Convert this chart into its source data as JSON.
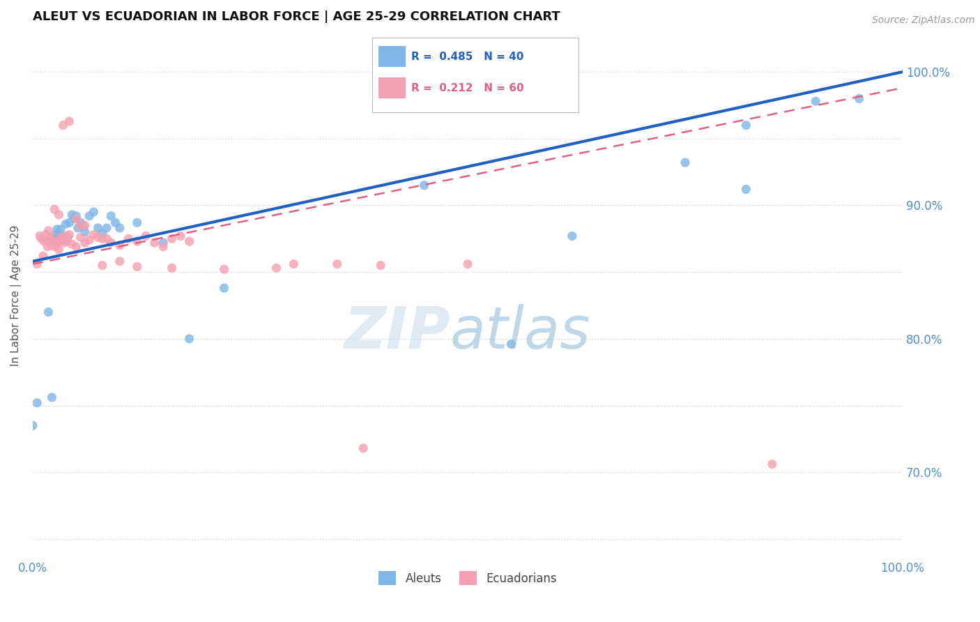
{
  "title": "ALEUT VS ECUADORIAN IN LABOR FORCE | AGE 25-29 CORRELATION CHART",
  "source": "Source: ZipAtlas.com",
  "ylabel": "In Labor Force | Age 25-29",
  "aleut_color": "#7EB6E8",
  "ecuadorian_color": "#F4A0B0",
  "blue_line_color": "#2060C0",
  "pink_line_color": "#E06080",
  "grid_color": "#D0DDE8",
  "background_color": "#FFFFFF",
  "xlim": [
    0.0,
    1.0
  ],
  "ylim": [
    0.635,
    1.03
  ],
  "aleut_R": 0.485,
  "aleut_N": 40,
  "ecuadorian_R": 0.212,
  "ecuadorian_N": 60,
  "aleut_line_x0": 0.0,
  "aleut_line_y0": 0.858,
  "aleut_line_x1": 1.0,
  "aleut_line_y1": 1.0,
  "ecua_line_x0": 0.0,
  "ecua_line_y0": 0.856,
  "ecua_line_x1": 1.0,
  "ecua_line_y1": 0.988,
  "aleut_scatter": [
    [
      0.0,
      0.735
    ],
    [
      0.005,
      0.752
    ],
    [
      0.018,
      0.82
    ],
    [
      0.022,
      0.756
    ],
    [
      0.025,
      0.875
    ],
    [
      0.027,
      0.878
    ],
    [
      0.028,
      0.882
    ],
    [
      0.03,
      0.873
    ],
    [
      0.032,
      0.882
    ],
    [
      0.033,
      0.877
    ],
    [
      0.038,
      0.886
    ],
    [
      0.04,
      0.876
    ],
    [
      0.042,
      0.887
    ],
    [
      0.045,
      0.893
    ],
    [
      0.048,
      0.89
    ],
    [
      0.05,
      0.892
    ],
    [
      0.052,
      0.883
    ],
    [
      0.055,
      0.887
    ],
    [
      0.058,
      0.884
    ],
    [
      0.06,
      0.88
    ],
    [
      0.065,
      0.892
    ],
    [
      0.07,
      0.895
    ],
    [
      0.075,
      0.883
    ],
    [
      0.08,
      0.879
    ],
    [
      0.085,
      0.883
    ],
    [
      0.09,
      0.892
    ],
    [
      0.095,
      0.887
    ],
    [
      0.1,
      0.883
    ],
    [
      0.12,
      0.887
    ],
    [
      0.15,
      0.872
    ],
    [
      0.18,
      0.8
    ],
    [
      0.22,
      0.838
    ],
    [
      0.45,
      0.915
    ],
    [
      0.55,
      0.796
    ],
    [
      0.62,
      0.877
    ],
    [
      0.75,
      0.932
    ],
    [
      0.82,
      0.96
    ],
    [
      0.9,
      0.978
    ],
    [
      0.95,
      0.98
    ],
    [
      0.82,
      0.912
    ]
  ],
  "ecuadorian_scatter": [
    [
      0.005,
      0.856
    ],
    [
      0.008,
      0.877
    ],
    [
      0.01,
      0.875
    ],
    [
      0.012,
      0.862
    ],
    [
      0.013,
      0.873
    ],
    [
      0.015,
      0.878
    ],
    [
      0.016,
      0.874
    ],
    [
      0.017,
      0.869
    ],
    [
      0.018,
      0.881
    ],
    [
      0.019,
      0.875
    ],
    [
      0.02,
      0.876
    ],
    [
      0.022,
      0.87
    ],
    [
      0.024,
      0.873
    ],
    [
      0.026,
      0.869
    ],
    [
      0.028,
      0.873
    ],
    [
      0.03,
      0.867
    ],
    [
      0.032,
      0.876
    ],
    [
      0.034,
      0.874
    ],
    [
      0.036,
      0.872
    ],
    [
      0.038,
      0.877
    ],
    [
      0.04,
      0.873
    ],
    [
      0.042,
      0.878
    ],
    [
      0.045,
      0.871
    ],
    [
      0.05,
      0.869
    ],
    [
      0.055,
      0.876
    ],
    [
      0.06,
      0.872
    ],
    [
      0.065,
      0.874
    ],
    [
      0.07,
      0.878
    ],
    [
      0.075,
      0.876
    ],
    [
      0.08,
      0.875
    ],
    [
      0.085,
      0.875
    ],
    [
      0.09,
      0.872
    ],
    [
      0.1,
      0.87
    ],
    [
      0.11,
      0.875
    ],
    [
      0.12,
      0.873
    ],
    [
      0.13,
      0.877
    ],
    [
      0.14,
      0.872
    ],
    [
      0.15,
      0.869
    ],
    [
      0.16,
      0.875
    ],
    [
      0.17,
      0.877
    ],
    [
      0.18,
      0.873
    ],
    [
      0.025,
      0.897
    ],
    [
      0.03,
      0.893
    ],
    [
      0.035,
      0.96
    ],
    [
      0.042,
      0.963
    ],
    [
      0.05,
      0.89
    ],
    [
      0.055,
      0.885
    ],
    [
      0.06,
      0.885
    ],
    [
      0.08,
      0.855
    ],
    [
      0.1,
      0.858
    ],
    [
      0.12,
      0.854
    ],
    [
      0.16,
      0.853
    ],
    [
      0.22,
      0.852
    ],
    [
      0.28,
      0.853
    ],
    [
      0.3,
      0.856
    ],
    [
      0.35,
      0.856
    ],
    [
      0.4,
      0.855
    ],
    [
      0.5,
      0.856
    ],
    [
      0.85,
      0.706
    ],
    [
      0.38,
      0.718
    ]
  ]
}
